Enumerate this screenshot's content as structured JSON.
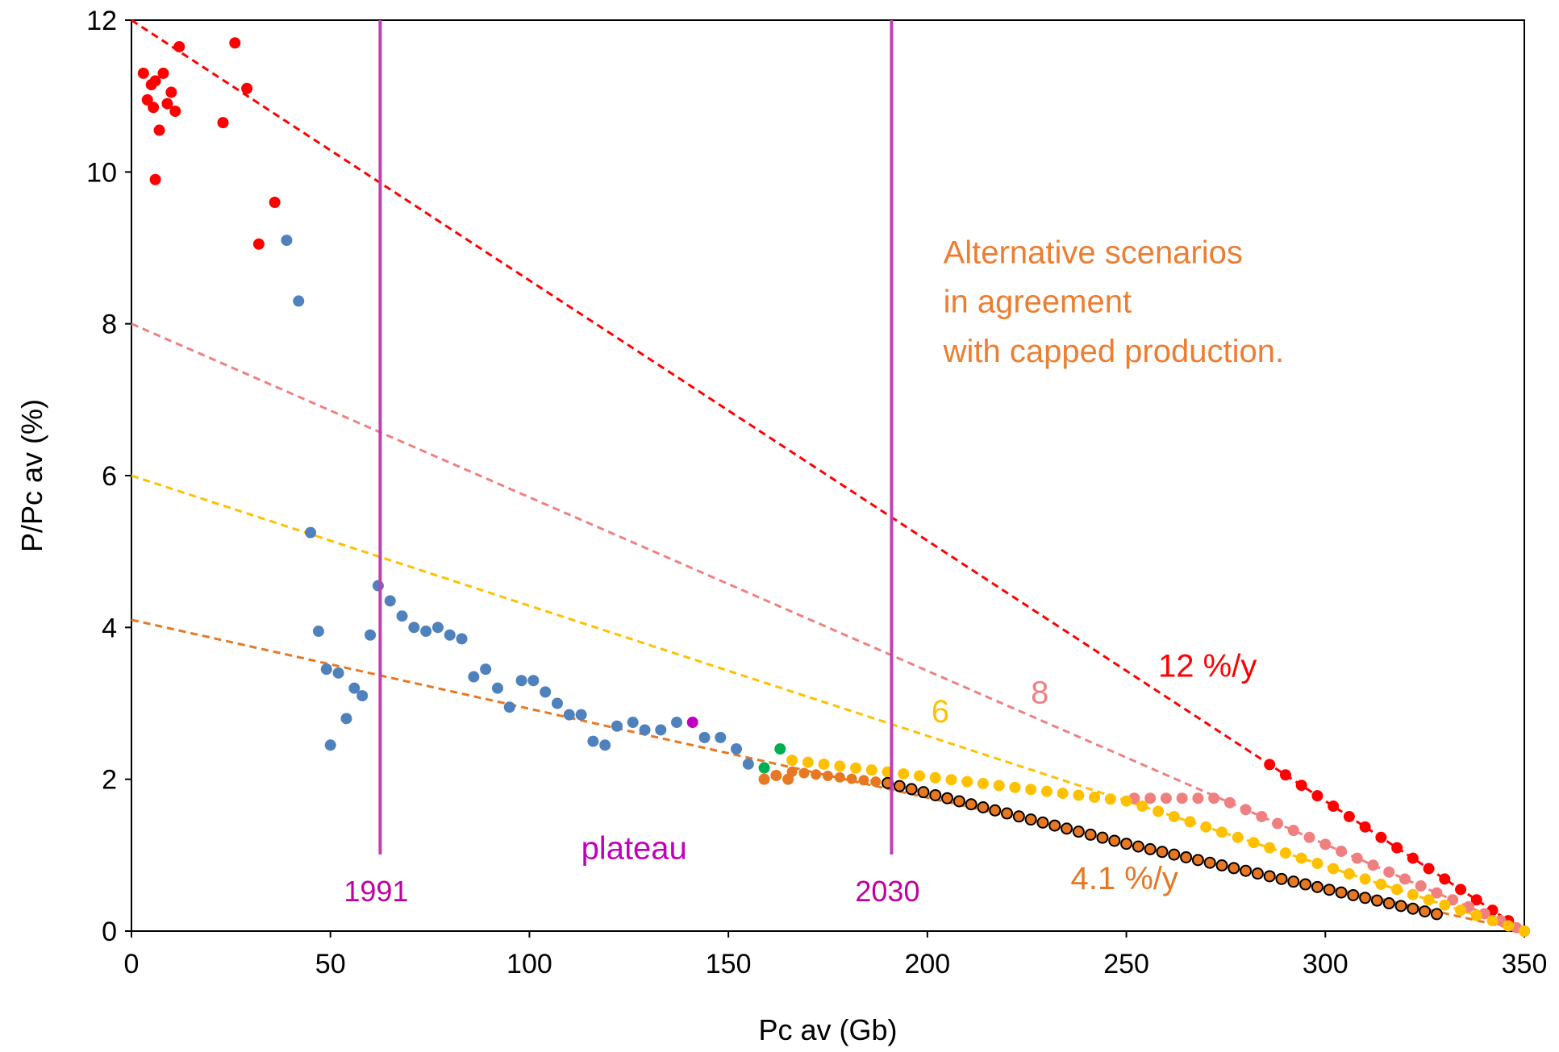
{
  "chart_data": {
    "type": "scatter",
    "xlabel": "Pc av (Gb)",
    "ylabel": "P/Pc av (%)",
    "xlim": [
      0,
      350
    ],
    "ylim": [
      0,
      12
    ],
    "xticks": [
      0,
      50,
      100,
      150,
      200,
      250,
      300,
      350
    ],
    "yticks": [
      0,
      2,
      4,
      6,
      8,
      10,
      12
    ],
    "grid": false,
    "series": [
      {
        "color": "#ff0000",
        "points": [
          [
            3,
            11.3
          ],
          [
            4,
            10.95
          ],
          [
            5,
            11.15
          ],
          [
            6,
            11.2
          ],
          [
            5.5,
            10.85
          ],
          [
            7,
            10.55
          ],
          [
            8,
            11.3
          ],
          [
            9,
            10.9
          ],
          [
            10,
            11.05
          ],
          [
            11,
            10.8
          ],
          [
            6,
            9.9
          ],
          [
            12,
            11.65
          ],
          [
            23,
            10.65
          ],
          [
            26,
            11.7
          ],
          [
            29,
            11.1
          ],
          [
            32,
            9.05
          ],
          [
            36,
            9.6
          ]
        ]
      },
      {
        "color": "#4f81bd",
        "points": [
          [
            39,
            9.1
          ],
          [
            42,
            8.3
          ],
          [
            45,
            5.25
          ],
          [
            47,
            3.95
          ],
          [
            49,
            3.45
          ],
          [
            50,
            2.45
          ],
          [
            52,
            3.4
          ],
          [
            54,
            2.8
          ],
          [
            56,
            3.2
          ],
          [
            58,
            3.1
          ],
          [
            60,
            3.9
          ],
          [
            62,
            4.55
          ],
          [
            65,
            4.35
          ],
          [
            68,
            4.15
          ],
          [
            71,
            4.0
          ],
          [
            74,
            3.95
          ],
          [
            77,
            4.0
          ],
          [
            80,
            3.9
          ],
          [
            83,
            3.85
          ],
          [
            86,
            3.35
          ],
          [
            89,
            3.45
          ],
          [
            92,
            3.2
          ],
          [
            95,
            2.95
          ],
          [
            98,
            3.3
          ],
          [
            101,
            3.3
          ],
          [
            104,
            3.15
          ],
          [
            107,
            3.0
          ],
          [
            110,
            2.85
          ],
          [
            113,
            2.85
          ],
          [
            116,
            2.5
          ],
          [
            119,
            2.45
          ],
          [
            122,
            2.7
          ],
          [
            126,
            2.75
          ],
          [
            129,
            2.65
          ],
          [
            133,
            2.65
          ],
          [
            137,
            2.75
          ],
          [
            144,
            2.55
          ],
          [
            148,
            2.55
          ],
          [
            152,
            2.4
          ],
          [
            155,
            2.2
          ]
        ]
      },
      {
        "color": "#c000c0",
        "points": [
          [
            141,
            2.75
          ]
        ]
      },
      {
        "color": "#00b050",
        "points": [
          [
            159,
            2.15
          ],
          [
            163,
            2.4
          ]
        ]
      },
      {
        "color": "#e87722",
        "points": [
          [
            159,
            2.0
          ],
          [
            162,
            2.05
          ],
          [
            165,
            2.0
          ]
        ]
      }
    ],
    "scenario_lines": [
      {
        "color": "#ff0000",
        "y0": 12,
        "label": "12 %/y",
        "label_color": "#ff0000"
      },
      {
        "color": "#f08080",
        "y0": 8,
        "label": "8",
        "label_color": "#f08080"
      },
      {
        "color": "#ffc000",
        "y0": 6,
        "label": "6",
        "label_color": "#ffc000"
      },
      {
        "color": "#e87722",
        "y0": 4.1,
        "label": "4.1 %/y",
        "label_color": "#e87722"
      }
    ],
    "vertical_lines": [
      {
        "x": 62.5,
        "label": "1991",
        "color": "#c040b0"
      },
      {
        "x": 191,
        "label": "2030",
        "color": "#c040b0"
      }
    ],
    "annotations": {
      "plateau": "plateau",
      "scenarios_text": [
        "Alternative scenarios",
        "in agreement",
        "with capped production."
      ]
    }
  }
}
